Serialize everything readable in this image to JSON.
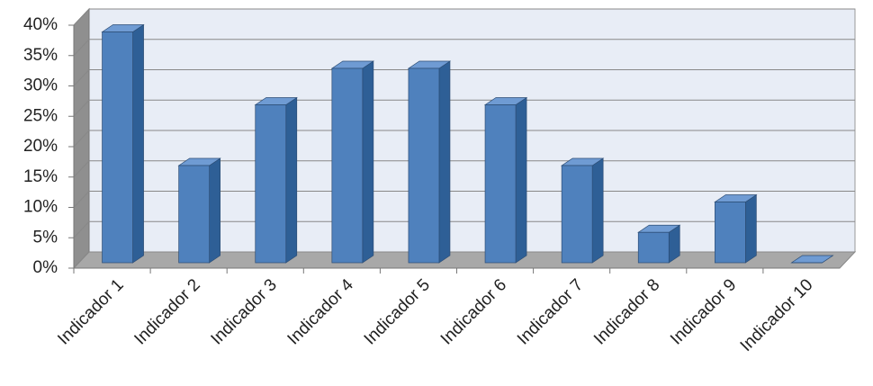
{
  "chart_data": {
    "type": "bar3d",
    "categories": [
      "Indicador 1",
      "Indicador 2",
      "Indicador 3",
      "Indicador 4",
      "Indicador 5",
      "Indicador 6",
      "Indicador 7",
      "Indicador 8",
      "Indicador 9",
      "Indicador 10"
    ],
    "values": [
      38,
      16,
      26,
      32,
      32,
      26,
      16,
      5,
      10,
      0
    ],
    "color": "#4f81bd",
    "ylim": [
      0,
      40
    ],
    "yticks": [
      {
        "value": 0,
        "label": "0%"
      },
      {
        "value": 5,
        "label": "5%"
      },
      {
        "value": 10,
        "label": "10%"
      },
      {
        "value": 15,
        "label": "15%"
      },
      {
        "value": 20,
        "label": "20%"
      },
      {
        "value": 25,
        "label": "25%"
      },
      {
        "value": 30,
        "label": "30%"
      },
      {
        "value": 35,
        "label": "35%"
      },
      {
        "value": 40,
        "label": "40%"
      }
    ],
    "grid": true
  }
}
